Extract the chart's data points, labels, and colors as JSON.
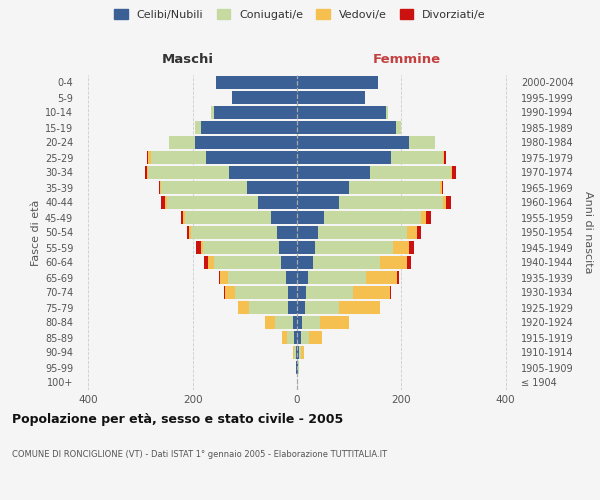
{
  "age_groups": [
    "100+",
    "95-99",
    "90-94",
    "85-89",
    "80-84",
    "75-79",
    "70-74",
    "65-69",
    "60-64",
    "55-59",
    "50-54",
    "45-49",
    "40-44",
    "35-39",
    "30-34",
    "25-29",
    "20-24",
    "15-19",
    "10-14",
    "5-9",
    "0-4"
  ],
  "birth_years": [
    "≤ 1904",
    "1905-1909",
    "1910-1914",
    "1915-1919",
    "1920-1924",
    "1925-1929",
    "1930-1934",
    "1935-1939",
    "1940-1944",
    "1945-1949",
    "1950-1954",
    "1955-1959",
    "1960-1964",
    "1965-1969",
    "1970-1974",
    "1975-1979",
    "1980-1984",
    "1985-1989",
    "1990-1994",
    "1995-1999",
    "2000-2004"
  ],
  "maschi": {
    "celibi": [
      0,
      1,
      2,
      5,
      8,
      18,
      18,
      22,
      30,
      35,
      38,
      50,
      75,
      95,
      130,
      175,
      195,
      185,
      160,
      125,
      155
    ],
    "coniugati": [
      0,
      1,
      4,
      15,
      35,
      75,
      100,
      110,
      130,
      145,
      165,
      165,
      175,
      165,
      155,
      105,
      50,
      10,
      5,
      0,
      0
    ],
    "vedovi": [
      0,
      0,
      2,
      8,
      18,
      20,
      20,
      15,
      10,
      5,
      5,
      3,
      3,
      2,
      2,
      5,
      0,
      0,
      0,
      0,
      0
    ],
    "divorziati": [
      0,
      0,
      0,
      0,
      0,
      0,
      2,
      3,
      8,
      8,
      3,
      5,
      8,
      3,
      5,
      3,
      0,
      0,
      0,
      0,
      0
    ]
  },
  "femmine": {
    "nubili": [
      0,
      1,
      3,
      8,
      10,
      15,
      18,
      22,
      30,
      35,
      40,
      52,
      80,
      100,
      140,
      180,
      215,
      190,
      170,
      130,
      155
    ],
    "coniugate": [
      0,
      2,
      5,
      15,
      35,
      65,
      90,
      110,
      130,
      150,
      170,
      185,
      200,
      175,
      155,
      100,
      50,
      10,
      5,
      0,
      0
    ],
    "vedove": [
      0,
      0,
      5,
      25,
      55,
      80,
      70,
      60,
      50,
      30,
      20,
      10,
      5,
      3,
      2,
      2,
      0,
      0,
      0,
      0,
      0
    ],
    "divorziate": [
      0,
      0,
      0,
      0,
      0,
      0,
      2,
      3,
      8,
      10,
      8,
      10,
      10,
      2,
      8,
      3,
      0,
      0,
      0,
      0,
      0
    ]
  },
  "colors": {
    "celibi": "#3a6096",
    "coniugati": "#c5d9a0",
    "vedovi": "#f5c050",
    "divorziati": "#cc1111"
  },
  "xlim": 420,
  "title": "Popolazione per età, sesso e stato civile - 2005",
  "subtitle": "COMUNE DI RONCIGLIONE (VT) - Dati ISTAT 1° gennaio 2005 - Elaborazione TUTTITALIA.IT",
  "ylabel_left": "Fasce di età",
  "ylabel_right": "Anni di nascita",
  "xlabel_maschi": "Maschi",
  "xlabel_femmine": "Femmine",
  "legend_labels": [
    "Celibi/Nubili",
    "Coniugati/e",
    "Vedovi/e",
    "Divorziati/e"
  ],
  "background_color": "#f5f5f5"
}
